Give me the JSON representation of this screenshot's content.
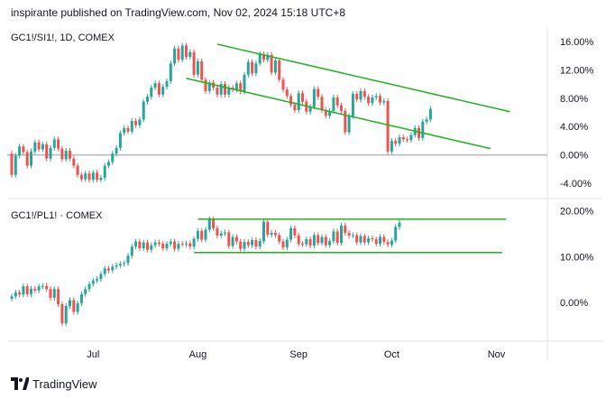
{
  "header": {
    "text": "inspirante published on TradingView.com, Nov 02, 2024 15:18 UTC+8"
  },
  "footer": {
    "logo_text": "TradingView",
    "logo_icon": "tradingview-logo-icon"
  },
  "colors": {
    "up": "#26a69a",
    "down": "#ef5350",
    "trendline": "#22b222",
    "grid": "#e0e3eb",
    "baseline": "#9598a1",
    "text": "#131722"
  },
  "chart_data": [
    {
      "type": "candlestick",
      "title": "GC1!/SI1!, 1D, COMEX",
      "yunit": "%",
      "ylim": [
        -5.5,
        17.5
      ],
      "yticks": [
        16,
        12,
        8,
        4,
        0,
        -4
      ],
      "ytick_labels": [
        "16.00%",
        "12.00%",
        "8.00%",
        "4.00%",
        "0.00%",
        "-4.00%"
      ],
      "baseline": 0,
      "x_labels": [
        {
          "label": "Jul",
          "index": 21
        },
        {
          "label": "Aug",
          "index": 48
        },
        {
          "label": "Sep",
          "index": 74
        },
        {
          "label": "Oct",
          "index": 98
        },
        {
          "label": "Nov",
          "index": 125
        }
      ],
      "candles": [
        [
          0.2,
          -2.8
        ],
        [
          -2.8,
          -0.1
        ],
        [
          -0.1,
          1.2
        ],
        [
          1.2,
          0.4
        ],
        [
          0.4,
          -1.5
        ],
        [
          -1.5,
          0.5
        ],
        [
          0.5,
          1.8
        ],
        [
          1.8,
          0.8
        ],
        [
          0.8,
          1.5
        ],
        [
          1.5,
          -0.5
        ],
        [
          -0.5,
          1.0
        ],
        [
          1.0,
          2.2
        ],
        [
          2.2,
          0.9
        ],
        [
          0.9,
          -0.6
        ],
        [
          -0.6,
          0.6
        ],
        [
          0.6,
          -0.5
        ],
        [
          -0.5,
          -1.5
        ],
        [
          -1.5,
          -2.8
        ],
        [
          -2.8,
          -3.4
        ],
        [
          -3.4,
          -2.6
        ],
        [
          -2.6,
          -3.5
        ],
        [
          -3.5,
          -2.5
        ],
        [
          -2.5,
          -3.5
        ],
        [
          -3.5,
          -3.2
        ],
        [
          -3.2,
          -1.5
        ],
        [
          -1.5,
          -1.0
        ],
        [
          -1.0,
          0.2
        ],
        [
          0.2,
          1.0
        ],
        [
          1.0,
          3.1
        ],
        [
          3.1,
          3.8
        ],
        [
          3.8,
          3.3
        ],
        [
          3.3,
          4.8
        ],
        [
          4.8,
          4.2
        ],
        [
          4.2,
          5.0
        ],
        [
          5.0,
          7.5
        ],
        [
          7.5,
          8.2
        ],
        [
          8.2,
          9.5
        ],
        [
          9.5,
          10.1
        ],
        [
          10.1,
          8.5
        ],
        [
          8.5,
          9.6
        ],
        [
          9.6,
          10.4
        ],
        [
          10.4,
          12.9
        ],
        [
          12.9,
          15.0
        ],
        [
          15.0,
          13.4
        ],
        [
          13.4,
          15.4
        ],
        [
          15.4,
          13.8
        ],
        [
          13.8,
          14.5
        ],
        [
          14.5,
          11.3
        ],
        [
          11.3,
          13.2
        ],
        [
          13.2,
          10.6
        ],
        [
          10.6,
          9.0
        ],
        [
          9.0,
          10.2
        ],
        [
          10.2,
          9.5
        ],
        [
          9.5,
          8.5
        ],
        [
          8.5,
          10.0
        ],
        [
          10.0,
          8.5
        ],
        [
          8.5,
          9.5
        ],
        [
          9.5,
          9.2
        ],
        [
          9.2,
          10.1
        ],
        [
          10.1,
          8.9
        ],
        [
          8.9,
          11.3
        ],
        [
          11.3,
          13.1
        ],
        [
          13.1,
          11.5
        ],
        [
          11.5,
          12.9
        ],
        [
          12.9,
          14.2
        ],
        [
          14.2,
          13.4
        ],
        [
          13.4,
          14.1
        ],
        [
          14.1,
          11.6
        ],
        [
          11.6,
          13.3
        ],
        [
          13.3,
          10.6
        ],
        [
          10.6,
          9.2
        ],
        [
          9.2,
          8.3
        ],
        [
          8.3,
          7.1
        ],
        [
          7.1,
          6.3
        ],
        [
          6.3,
          8.7
        ],
        [
          8.7,
          7.5
        ],
        [
          7.5,
          6.1
        ],
        [
          6.1,
          6.8
        ],
        [
          6.8,
          9.3
        ],
        [
          9.3,
          8.2
        ],
        [
          8.2,
          6.3
        ],
        [
          6.3,
          5.5
        ],
        [
          5.5,
          6.2
        ],
        [
          6.2,
          8.1
        ],
        [
          8.1,
          7.0
        ],
        [
          7.0,
          6.2
        ],
        [
          6.2,
          3.2
        ],
        [
          3.2,
          5.5
        ],
        [
          5.5,
          8.6
        ],
        [
          8.6,
          7.8
        ],
        [
          7.8,
          9.0
        ],
        [
          9.0,
          8.2
        ],
        [
          8.2,
          7.3
        ],
        [
          7.3,
          8.1
        ],
        [
          8.1,
          8.3
        ],
        [
          8.3,
          7.4
        ],
        [
          7.4,
          7.6
        ],
        [
          7.6,
          0.5
        ],
        [
          0.5,
          2.0
        ],
        [
          2.0,
          1.6
        ],
        [
          1.6,
          2.5
        ],
        [
          2.5,
          2.2
        ],
        [
          2.2,
          2.1
        ],
        [
          2.1,
          2.8
        ],
        [
          2.8,
          3.8
        ],
        [
          3.8,
          2.4
        ],
        [
          2.4,
          4.7
        ],
        [
          4.7,
          5.0
        ],
        [
          5.0,
          6.5
        ]
      ]
    },
    {
      "type": "candlestick",
      "title": "GC1!/PL1! · COMEX",
      "yunit": "%",
      "ylim": [
        -8.5,
        21.5
      ],
      "yticks": [
        20,
        10,
        0
      ],
      "ytick_labels": [
        "20.00%",
        "10.00%",
        "0.00%"
      ],
      "baseline": null,
      "candles": [
        [
          0.8,
          1.3
        ],
        [
          1.3,
          2.2
        ],
        [
          2.2,
          1.7
        ],
        [
          1.7,
          3.5
        ],
        [
          3.5,
          1.8
        ],
        [
          1.8,
          3.0
        ],
        [
          3.0,
          2.6
        ],
        [
          2.6,
          3.5
        ],
        [
          3.5,
          3.6
        ],
        [
          3.6,
          2.9
        ],
        [
          2.9,
          1.0
        ],
        [
          1.0,
          2.9
        ],
        [
          2.9,
          -0.4
        ],
        [
          -0.4,
          -4.6
        ],
        [
          -4.6,
          -0.8
        ],
        [
          -0.8,
          0.5
        ],
        [
          0.5,
          -2.1
        ],
        [
          -2.1,
          -0.2
        ],
        [
          -0.2,
          1.8
        ],
        [
          1.8,
          2.9
        ],
        [
          2.9,
          4.0
        ],
        [
          4.0,
          4.8
        ],
        [
          4.8,
          5.1
        ],
        [
          5.1,
          6.2
        ],
        [
          6.2,
          7.4
        ],
        [
          7.4,
          7.0
        ],
        [
          7.0,
          7.8
        ],
        [
          7.8,
          8.1
        ],
        [
          8.1,
          8.4
        ],
        [
          8.4,
          8.6
        ],
        [
          8.6,
          10.2
        ],
        [
          10.2,
          12.2
        ],
        [
          12.2,
          13.3
        ],
        [
          13.3,
          11.8
        ],
        [
          11.8,
          13.1
        ],
        [
          13.1,
          11.5
        ],
        [
          11.5,
          12.5
        ],
        [
          12.5,
          13.1
        ],
        [
          13.1,
          12.8
        ],
        [
          12.8,
          11.8
        ],
        [
          11.8,
          12.8
        ],
        [
          12.8,
          13.3
        ],
        [
          13.3,
          11.7
        ],
        [
          11.7,
          12.8
        ],
        [
          12.8,
          12.7
        ],
        [
          12.7,
          12.9
        ],
        [
          12.9,
          12.2
        ],
        [
          12.2,
          13.9
        ],
        [
          13.9,
          15.6
        ],
        [
          15.6,
          13.7
        ],
        [
          13.7,
          15.9
        ],
        [
          15.9,
          18.2
        ],
        [
          18.2,
          16.2
        ],
        [
          16.2,
          14.6
        ],
        [
          14.6,
          15.1
        ],
        [
          15.1,
          15.3
        ],
        [
          15.3,
          12.3
        ],
        [
          12.3,
          14.3
        ],
        [
          14.3,
          13.3
        ],
        [
          13.3,
          11.7
        ],
        [
          11.7,
          13.2
        ],
        [
          13.2,
          12.5
        ],
        [
          12.5,
          13.6
        ],
        [
          13.6,
          12.2
        ],
        [
          12.2,
          13.4
        ],
        [
          13.4,
          17.6
        ],
        [
          17.6,
          14.8
        ],
        [
          14.8,
          15.2
        ],
        [
          15.2,
          14.7
        ],
        [
          14.7,
          13.3
        ],
        [
          13.3,
          12.0
        ],
        [
          12.0,
          13.7
        ],
        [
          13.7,
          16.2
        ],
        [
          16.2,
          14.6
        ],
        [
          14.6,
          12.8
        ],
        [
          12.8,
          12.7
        ],
        [
          12.7,
          13.8
        ],
        [
          13.8,
          12.4
        ],
        [
          12.4,
          14.7
        ],
        [
          14.7,
          13.0
        ],
        [
          13.0,
          14.3
        ],
        [
          14.3,
          12.5
        ],
        [
          12.5,
          13.4
        ],
        [
          13.4,
          15.5
        ],
        [
          15.5,
          13.0
        ],
        [
          13.0,
          16.8
        ],
        [
          16.8,
          15.2
        ],
        [
          15.2,
          14.6
        ],
        [
          14.6,
          14.7
        ],
        [
          14.7,
          13.1
        ],
        [
          13.1,
          14.5
        ],
        [
          14.5,
          13.1
        ],
        [
          13.1,
          14.0
        ],
        [
          14.0,
          13.8
        ],
        [
          13.8,
          12.8
        ],
        [
          12.8,
          14.3
        ],
        [
          14.3,
          13.2
        ],
        [
          13.2,
          12.6
        ],
        [
          12.6,
          13.5
        ],
        [
          13.5,
          16.5
        ],
        [
          16.5,
          17.4
        ]
      ]
    }
  ]
}
